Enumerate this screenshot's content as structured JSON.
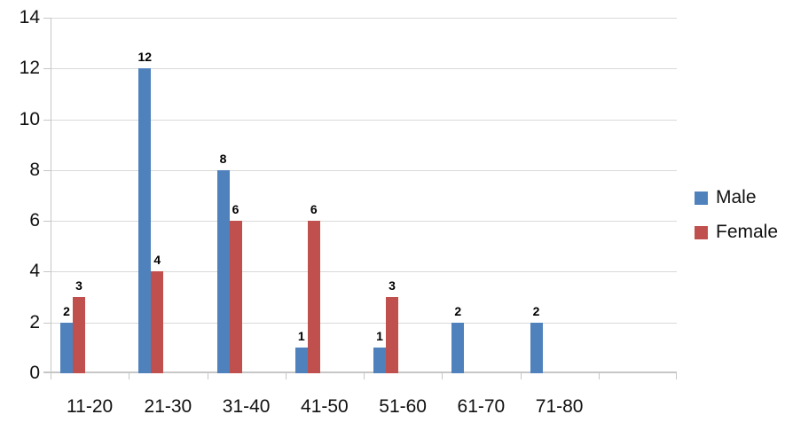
{
  "chart_data": {
    "type": "bar",
    "title": "",
    "xlabel": "",
    "ylabel": "",
    "categories": [
      "11-20",
      "21-30",
      "31-40",
      "41-50",
      "51-60",
      "61-70",
      "71-80",
      ""
    ],
    "series": [
      {
        "name": "Male",
        "color": "#4F81BD",
        "values": [
          2,
          12,
          8,
          1,
          1,
          2,
          2,
          null
        ]
      },
      {
        "name": "Female",
        "color": "#C0504D",
        "values": [
          3,
          4,
          6,
          6,
          3,
          null,
          null,
          null
        ]
      }
    ],
    "ylim": [
      0,
      14
    ],
    "ytick_step": 2,
    "yticks": [
      0,
      2,
      4,
      6,
      8,
      10,
      12,
      14
    ],
    "grid": true,
    "data_labels": true,
    "legend_position": "right",
    "colors": {
      "gridline": "#D9D9D9",
      "axis": "#C6C6C6",
      "text": "#000000",
      "background": "#FFFFFF"
    }
  }
}
